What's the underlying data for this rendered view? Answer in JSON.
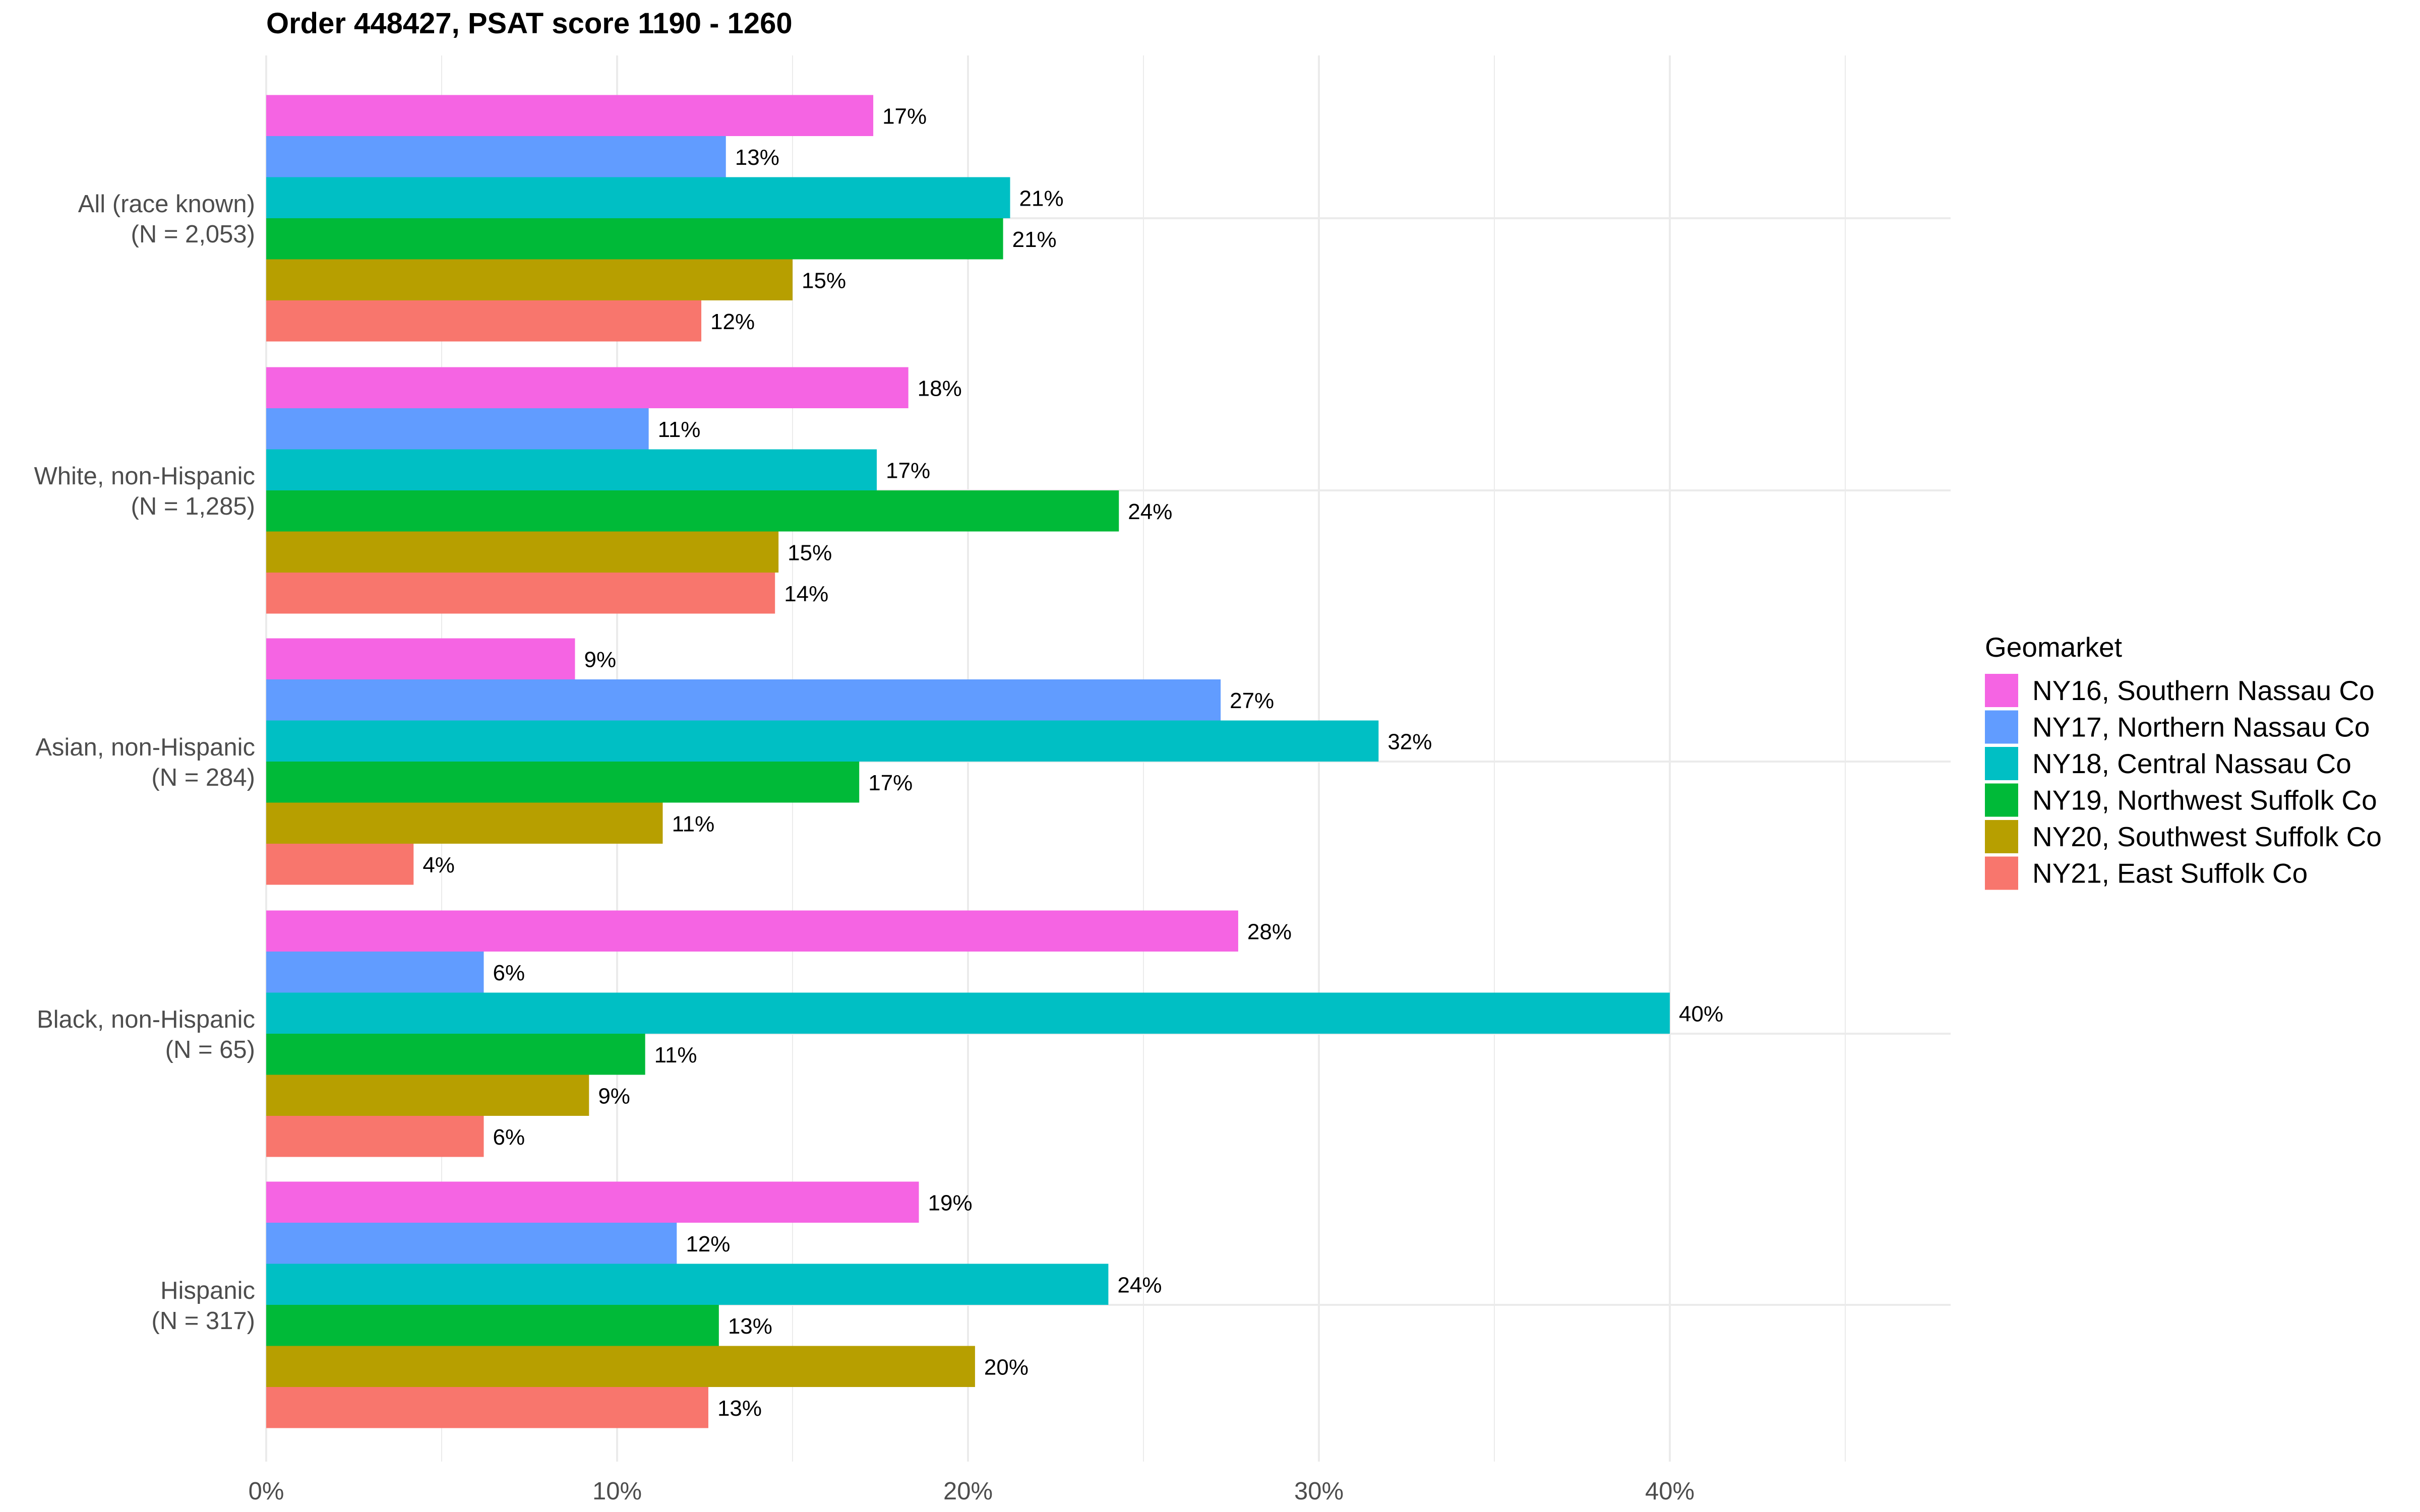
{
  "chart_data": {
    "type": "bar",
    "orientation": "horizontal",
    "title": "Order 448427, PSAT score 1190 - 1260",
    "xlabel": "",
    "ylabel": "",
    "xlim": [
      0,
      48
    ],
    "x_ticks": [
      0,
      10,
      20,
      30,
      40
    ],
    "x_tick_labels": [
      "0%",
      "10%",
      "20%",
      "30%",
      "40%"
    ],
    "grid": true,
    "legend": {
      "title": "Geomarket",
      "placement": "right"
    },
    "categories": [
      "All (race known)\n(N = 2,053)",
      "White, non-Hispanic\n(N = 1,285)",
      "Asian, non-Hispanic\n(N = 284)",
      "Black, non-Hispanic\n(N = 65)",
      "Hispanic\n(N = 317)"
    ],
    "category_lines": [
      [
        "All (race known)",
        "(N = 2,053)"
      ],
      [
        "White, non-Hispanic",
        "(N = 1,285)"
      ],
      [
        "Asian, non-Hispanic",
        "(N = 284)"
      ],
      [
        "Black, non-Hispanic",
        "(N = 65)"
      ],
      [
        "Hispanic",
        "(N = 317)"
      ]
    ],
    "series": [
      {
        "name": "NY16, Southern Nassau Co",
        "color": "#F564E3",
        "values": [
          17.3,
          18.3,
          8.8,
          27.7,
          18.6
        ],
        "labels": [
          "17%",
          "18%",
          "9%",
          "28%",
          "19%"
        ]
      },
      {
        "name": "NY17, Northern Nassau Co",
        "color": "#619CFF",
        "values": [
          13.1,
          10.9,
          27.2,
          6.2,
          11.7
        ],
        "labels": [
          "13%",
          "11%",
          "27%",
          "6%",
          "12%"
        ]
      },
      {
        "name": "NY18, Central Nassau Co",
        "color": "#00BFC4",
        "values": [
          21.2,
          17.4,
          31.7,
          40.0,
          24.0
        ],
        "labels": [
          "21%",
          "17%",
          "32%",
          "40%",
          "24%"
        ]
      },
      {
        "name": "NY19, Northwest Suffolk Co",
        "color": "#00BA38",
        "values": [
          21.0,
          24.3,
          16.9,
          10.8,
          12.9
        ],
        "labels": [
          "21%",
          "24%",
          "17%",
          "11%",
          "13%"
        ]
      },
      {
        "name": "NY20, Southwest Suffolk Co",
        "color": "#B79F00",
        "values": [
          15.0,
          14.6,
          11.3,
          9.2,
          20.2
        ],
        "labels": [
          "15%",
          "15%",
          "11%",
          "9%",
          "20%"
        ]
      },
      {
        "name": "NY21, East Suffolk Co",
        "color": "#F8766D",
        "values": [
          12.4,
          14.5,
          4.2,
          6.2,
          12.6
        ],
        "labels": [
          "12%",
          "14%",
          "4%",
          "6%",
          "13%"
        ]
      }
    ]
  }
}
